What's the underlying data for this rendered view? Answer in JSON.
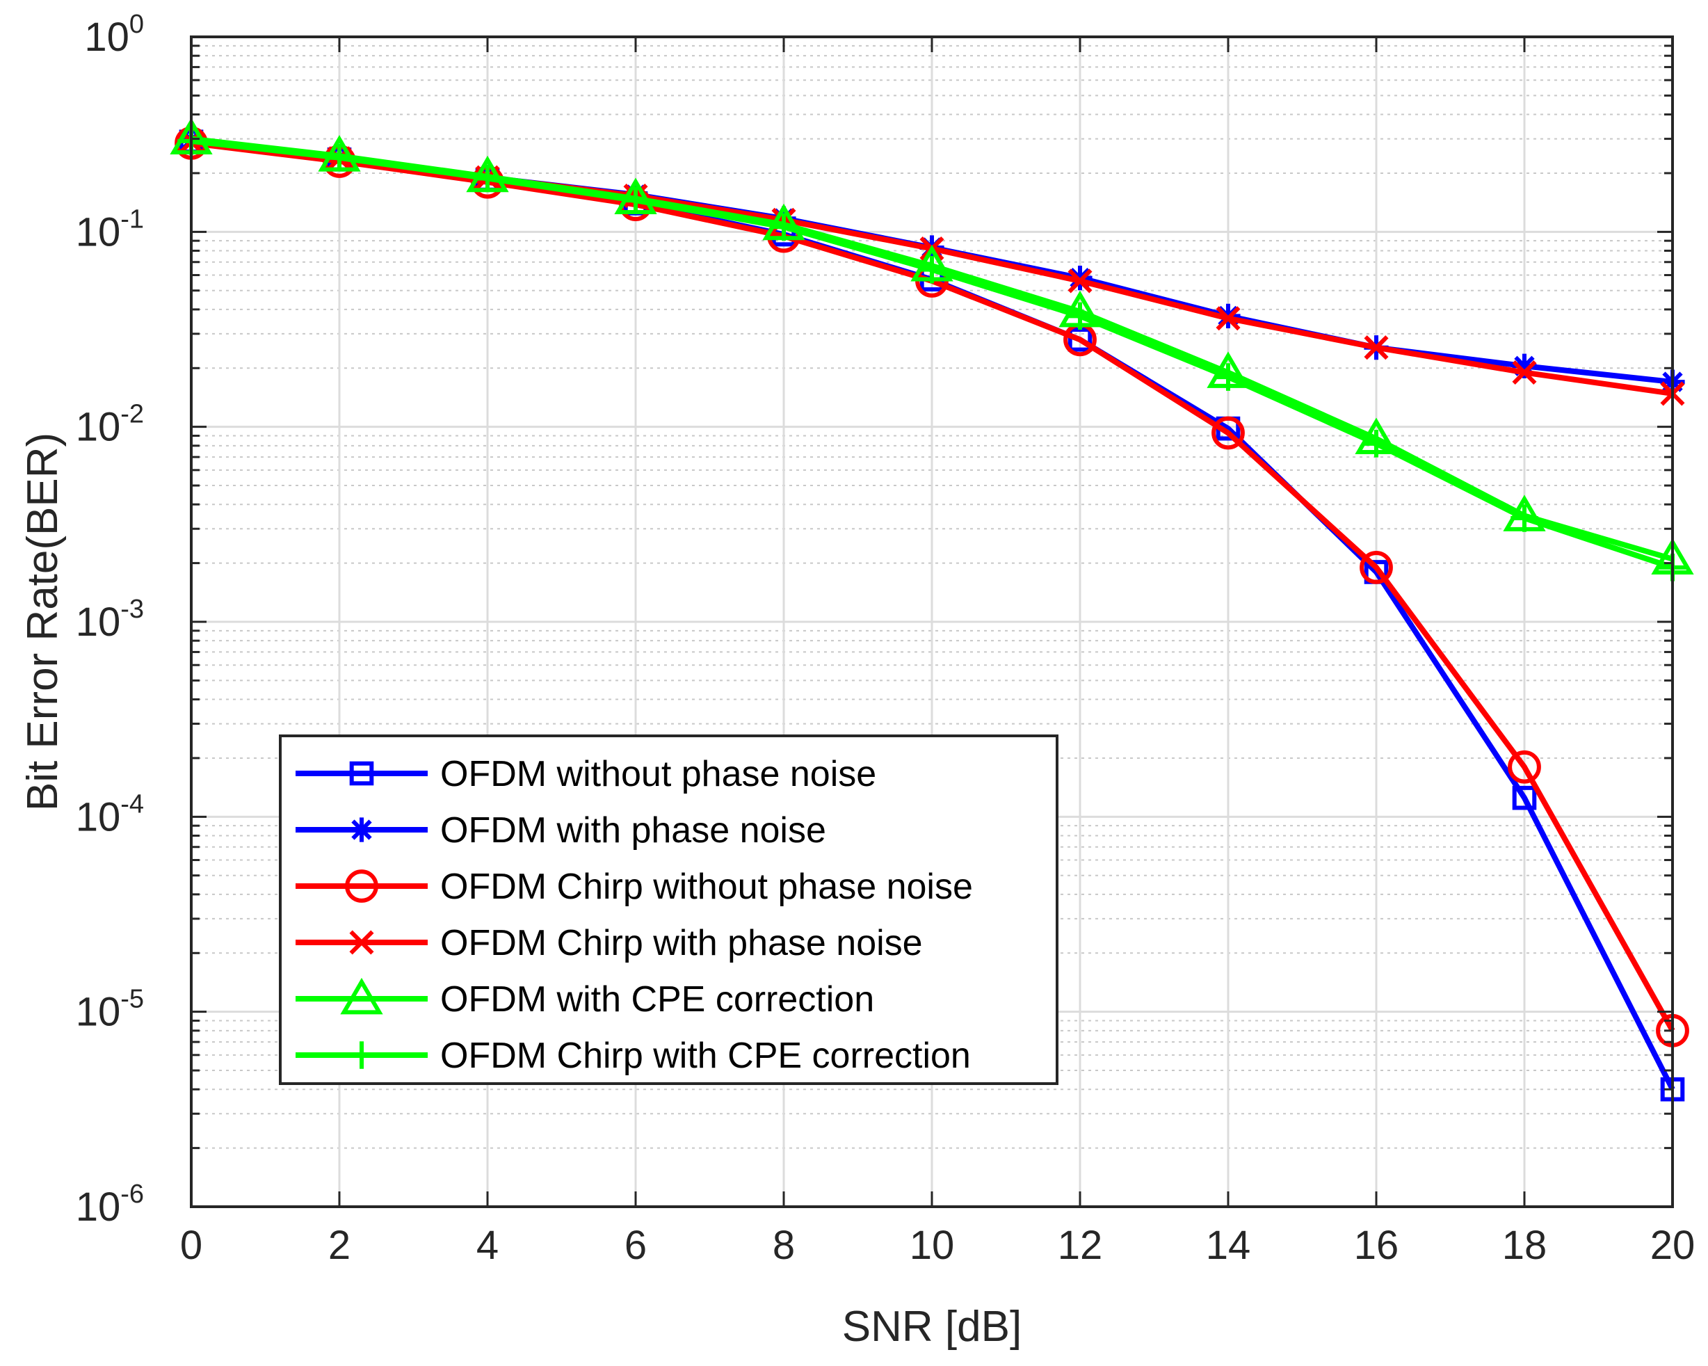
{
  "chart_data": {
    "type": "line",
    "title": "",
    "xlabel": "SNR [dB]",
    "ylabel": "Bit Error Rate(BER)",
    "xscale": "linear",
    "yscale": "log",
    "xlim": [
      0,
      20
    ],
    "ylim": [
      1e-06,
      1
    ],
    "xticks": [
      0,
      2,
      4,
      6,
      8,
      10,
      12,
      14,
      16,
      18,
      20
    ],
    "yticks": [
      {
        "value": 1e-06,
        "base": "10",
        "exp": "-6"
      },
      {
        "value": 1e-05,
        "base": "10",
        "exp": "-5"
      },
      {
        "value": 0.0001,
        "base": "10",
        "exp": "-4"
      },
      {
        "value": 0.001,
        "base": "10",
        "exp": "-3"
      },
      {
        "value": 0.01,
        "base": "10",
        "exp": "-2"
      },
      {
        "value": 0.1,
        "base": "10",
        "exp": "-1"
      },
      {
        "value": 1,
        "base": "10",
        "exp": "0"
      }
    ],
    "grid": true,
    "legend_position": "lower-left",
    "x": [
      0,
      2,
      4,
      6,
      8,
      10,
      12,
      14,
      16,
      18,
      20
    ],
    "series": [
      {
        "name": "OFDM without phase noise",
        "color": "#0000ff",
        "marker": "square",
        "values": [
          0.29,
          0.235,
          0.185,
          0.14,
          0.097,
          0.057,
          0.028,
          0.0098,
          0.0018,
          0.000125,
          4e-06
        ]
      },
      {
        "name": "OFDM with phase noise",
        "color": "#0000ff",
        "marker": "asterisk",
        "values": [
          0.295,
          0.24,
          0.19,
          0.155,
          0.117,
          0.083,
          0.058,
          0.037,
          0.0255,
          0.0205,
          0.017
        ]
      },
      {
        "name": "OFDM Chirp without phase noise",
        "color": "#ff0000",
        "marker": "circle",
        "values": [
          0.285,
          0.23,
          0.18,
          0.138,
          0.095,
          0.056,
          0.028,
          0.0093,
          0.0019,
          0.00018,
          8e-06
        ]
      },
      {
        "name": "OFDM Chirp with phase noise",
        "color": "#ff0000",
        "marker": "x",
        "values": [
          0.29,
          0.238,
          0.19,
          0.153,
          0.115,
          0.082,
          0.056,
          0.036,
          0.0255,
          0.019,
          0.0148
        ]
      },
      {
        "name": "OFDM with CPE correction",
        "color": "#00ff00",
        "marker": "triangle",
        "values": [
          0.3,
          0.245,
          0.192,
          0.148,
          0.109,
          0.067,
          0.039,
          0.019,
          0.0087,
          0.0035,
          0.0021
        ]
      },
      {
        "name": "OFDM Chirp with CPE correction",
        "color": "#00ff00",
        "marker": "plus",
        "values": [
          0.292,
          0.24,
          0.188,
          0.145,
          0.106,
          0.064,
          0.037,
          0.018,
          0.0082,
          0.0034,
          0.0019
        ]
      }
    ]
  }
}
